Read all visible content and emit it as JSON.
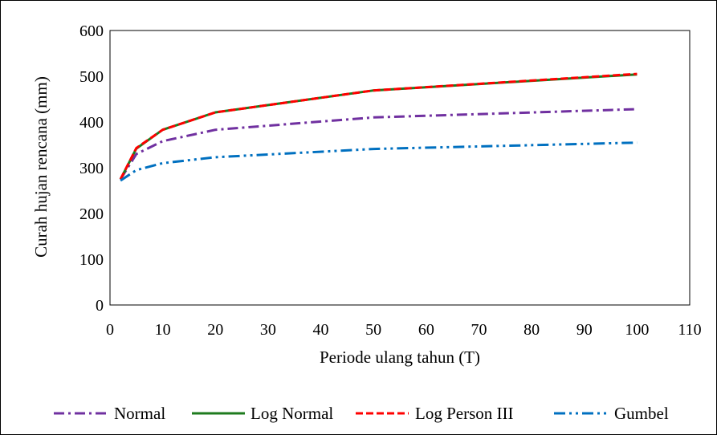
{
  "chart_data": {
    "type": "line",
    "xlabel": "Periode ulang tahun (T)",
    "ylabel": "Curah hujan rencana (mm)",
    "xlim": [
      0,
      110
    ],
    "ylim": [
      0,
      600
    ],
    "xticks": [
      0,
      10,
      20,
      30,
      40,
      50,
      60,
      70,
      80,
      90,
      100,
      110
    ],
    "yticks": [
      0,
      100,
      200,
      300,
      400,
      500,
      600
    ],
    "grid": false,
    "legend_position": "bottom",
    "x": [
      2,
      5,
      10,
      20,
      50,
      100
    ],
    "series": [
      {
        "name": "Normal",
        "color": "#7030A0",
        "dash": "dash-dot",
        "values": [
          275,
          330,
          358,
          383,
          410,
          428
        ]
      },
      {
        "name": "Log Normal",
        "color": "#1E7B1E",
        "dash": "solid",
        "values": [
          275,
          342,
          383,
          421,
          469,
          504
        ]
      },
      {
        "name": "Log Person III",
        "color": "#FF0000",
        "dash": "dashed",
        "values": [
          275,
          343,
          383,
          421,
          469,
          505
        ]
      },
      {
        "name": "Gumbel",
        "color": "#0070C0",
        "dash": "dash-dot-dot",
        "values": [
          272,
          295,
          310,
          323,
          341,
          355
        ]
      }
    ]
  }
}
